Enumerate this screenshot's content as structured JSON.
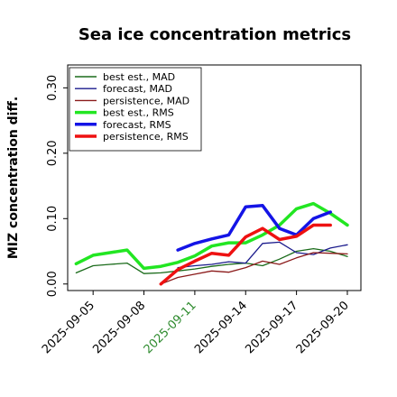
{
  "chart_data": {
    "type": "line",
    "title": "Sea ice concentration metrics",
    "ylabel": "MIZ concentration diff.",
    "xlabel": "",
    "x": [
      "2025-09-04",
      "2025-09-05",
      "2025-09-06",
      "2025-09-07",
      "2025-09-08",
      "2025-09-09",
      "2025-09-10",
      "2025-09-11",
      "2025-09-12",
      "2025-09-13",
      "2025-09-14",
      "2025-09-15",
      "2025-09-16",
      "2025-09-17",
      "2025-09-18",
      "2025-09-19",
      "2025-09-20"
    ],
    "xticks": [
      "2025-09-05",
      "2025-09-08",
      "2025-09-11",
      "2025-09-14",
      "2025-09-17",
      "2025-09-20"
    ],
    "highlight_tick": "2025-09-11",
    "highlight_color": "#2e8b2e",
    "yticks": [
      "0.00",
      "0.10",
      "0.20",
      "0.30"
    ],
    "ylim": [
      -0.01,
      0.335
    ],
    "xlim": [
      "2025-09-03.5",
      "2025-09-20.8"
    ],
    "grid": false,
    "legend_position": "top-left",
    "series": [
      {
        "name": "best est., MAD",
        "color": "#1a6b1a",
        "width": 1.3,
        "values": [
          0.017,
          0.028,
          0.03,
          0.032,
          0.016,
          0.017,
          0.02,
          0.023,
          0.027,
          0.03,
          0.032,
          0.028,
          0.038,
          0.05,
          0.054,
          0.05,
          0.042
        ]
      },
      {
        "name": "forecast,  MAD",
        "color": "#1a1a8c",
        "width": 1.3,
        "values": [
          null,
          null,
          null,
          null,
          null,
          null,
          0.025,
          0.028,
          0.03,
          0.034,
          0.032,
          0.062,
          0.064,
          0.048,
          0.045,
          0.055,
          0.06
        ]
      },
      {
        "name": "persistence, MAD",
        "color": "#8b1a1a",
        "width": 1.3,
        "values": [
          null,
          null,
          null,
          null,
          null,
          0.0,
          0.01,
          0.015,
          0.02,
          0.018,
          0.025,
          0.035,
          0.03,
          0.04,
          0.048,
          0.047,
          0.046
        ]
      },
      {
        "name": "best est., RMS",
        "color": "#22e622",
        "width": 3.5,
        "values": [
          0.031,
          0.044,
          0.048,
          0.052,
          0.024,
          0.027,
          0.033,
          0.043,
          0.058,
          0.063,
          0.063,
          0.075,
          0.09,
          0.115,
          0.123,
          0.108,
          0.09
        ]
      },
      {
        "name": "forecast,  RMS",
        "color": "#1414e6",
        "width": 3.5,
        "values": [
          null,
          null,
          null,
          null,
          null,
          null,
          0.052,
          0.062,
          0.069,
          0.075,
          0.118,
          0.12,
          0.085,
          0.075,
          0.1,
          0.11,
          null
        ]
      },
      {
        "name": "persistence, RMS",
        "color": "#ee1111",
        "width": 3.5,
        "values": [
          null,
          null,
          null,
          null,
          null,
          0.0,
          0.022,
          0.035,
          0.047,
          0.044,
          0.072,
          0.085,
          0.068,
          0.073,
          0.09,
          0.09,
          null
        ]
      }
    ]
  }
}
